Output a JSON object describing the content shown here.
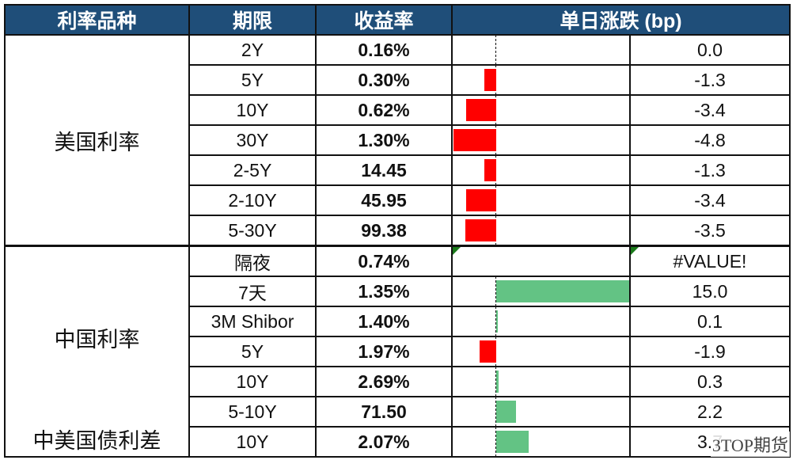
{
  "header": {
    "col_category": "利率品种",
    "col_term": "期限",
    "col_yield": "收益率",
    "col_change": "单日涨跌 (bp)"
  },
  "colors": {
    "header_bg": "#1f4e79",
    "negative_bar": "#ff0000",
    "positive_bar": "#63c384"
  },
  "sections": [
    {
      "category": "美国利率",
      "rows": [
        {
          "term": "2Y",
          "yield": "0.16%",
          "change": "0.0",
          "bp": 0.0
        },
        {
          "term": "5Y",
          "yield": "0.30%",
          "change": "-1.3",
          "bp": -1.3
        },
        {
          "term": "10Y",
          "yield": "0.62%",
          "change": "-3.4",
          "bp": -3.4
        },
        {
          "term": "30Y",
          "yield": "1.30%",
          "change": "-4.8",
          "bp": -4.8
        },
        {
          "term": "2-5Y",
          "yield": "14.45",
          "change": "-1.3",
          "bp": -1.3
        },
        {
          "term": "2-10Y",
          "yield": "45.95",
          "change": "-3.4",
          "bp": -3.4
        },
        {
          "term": "5-30Y",
          "yield": "99.38",
          "change": "-3.5",
          "bp": -3.5
        }
      ]
    },
    {
      "category": "中国利率",
      "rows": [
        {
          "term": "隔夜",
          "yield": "0.74%",
          "change": "#VALUE!",
          "bp": null
        },
        {
          "term": "7天",
          "yield": "1.35%",
          "change": "15.0",
          "bp": 15.0
        },
        {
          "term": "3M Shibor",
          "yield": "1.40%",
          "change": "0.1",
          "bp": 0.1
        },
        {
          "term": "5Y",
          "yield": "1.97%",
          "change": "-1.9",
          "bp": -1.9
        },
        {
          "term": "10Y",
          "yield": "2.69%",
          "change": "0.3",
          "bp": 0.3
        },
        {
          "term": "5-10Y",
          "yield": "71.50",
          "change": "2.2",
          "bp": 2.2
        }
      ]
    },
    {
      "category": "中美国债利差",
      "rows": [
        {
          "term": "10Y",
          "yield": "2.07%",
          "change": "3.7",
          "bp": 3.7
        }
      ]
    }
  ],
  "watermark": "3TOP期货"
}
